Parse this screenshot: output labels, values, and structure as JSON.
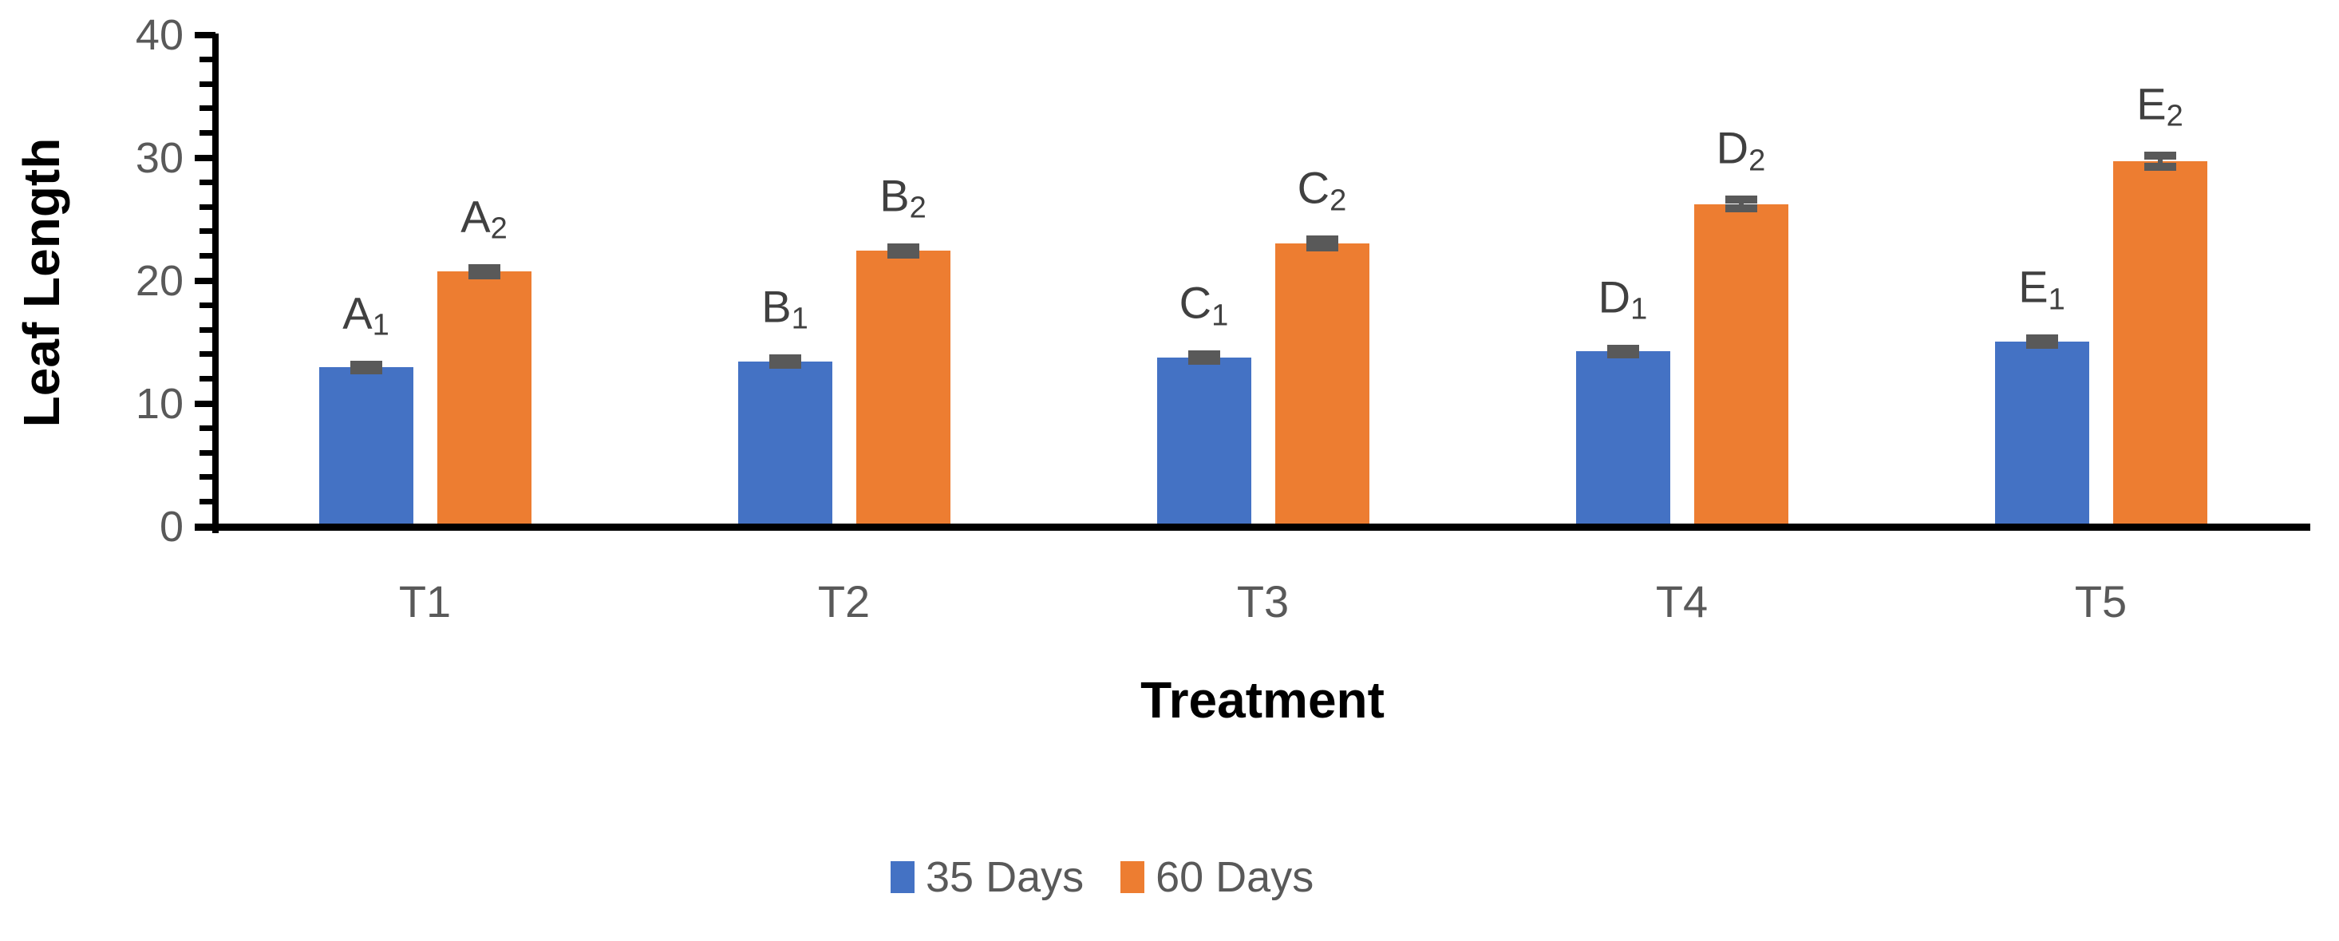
{
  "chart_data": {
    "type": "bar",
    "title": "",
    "xlabel": "Treatment",
    "ylabel": "Leaf Length",
    "categories": [
      "T1",
      "T2",
      "T3",
      "T4",
      "T5"
    ],
    "series": [
      {
        "name": "35 Days",
        "color": "#4472C4",
        "values": [
          12.7,
          13.2,
          13.5,
          14.0,
          14.8
        ],
        "errors": [
          0.25,
          0.25,
          0.25,
          0.25,
          0.25
        ],
        "point_labels": [
          "A1",
          "B1",
          "C1",
          "D1",
          "E1"
        ]
      },
      {
        "name": "60 Days",
        "color": "#ED7D31",
        "values": [
          20.5,
          22.2,
          22.8,
          26.0,
          29.5
        ],
        "errors": [
          0.3,
          0.3,
          0.3,
          0.35,
          0.45
        ],
        "point_labels": [
          "A2",
          "B2",
          "C2",
          "D2",
          "E2"
        ]
      }
    ],
    "ylim": [
      0,
      40
    ],
    "yticks": [
      0,
      10,
      20,
      30,
      40
    ],
    "minor_tick_step": 2,
    "legend_position": "bottom",
    "grid": false,
    "colors": {
      "axis": "#000000",
      "tick_label": "#595959",
      "category_label": "#595959",
      "point_label": "#404040",
      "error_bar": "#595959",
      "legend_text": "#595959",
      "background": "#FFFFFF"
    }
  }
}
